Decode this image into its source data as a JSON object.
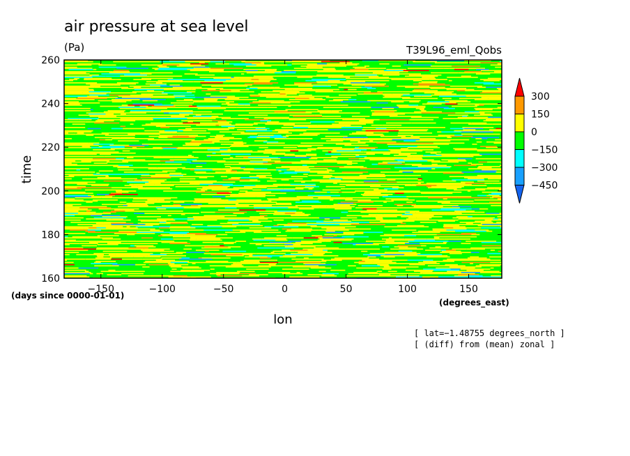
{
  "chart_data": {
    "type": "heatmap",
    "title": "air pressure at sea level",
    "units": "(Pa)",
    "dataset": "T39L96_eml_Qobs",
    "xlabel": "lon",
    "ylabel": "time",
    "x_units": "(degrees_east)",
    "y_units": "(days since 0000-01-01)",
    "xlim": [
      -180,
      177
    ],
    "ylim": [
      160,
      260
    ],
    "x_ticks": [
      -150,
      -100,
      -50,
      0,
      50,
      100,
      150
    ],
    "y_ticks": [
      160,
      180,
      200,
      220,
      240,
      260
    ],
    "x_tick_labels": [
      "−150",
      "−100",
      "−50",
      "0",
      "50",
      "100",
      "150"
    ],
    "colorbar": {
      "levels": [
        -450,
        -300,
        -150,
        0,
        150,
        300
      ],
      "level_labels": [
        "−450",
        "−300",
        "−150",
        "0",
        "150",
        "300"
      ],
      "colors": [
        "#1464f0",
        "#18a0ff",
        "#00ffff",
        "#00ff00",
        "#ffff00",
        "#ff9900",
        "#ff0000"
      ],
      "extend": "both"
    },
    "notes": [
      "[ lat=−1.48755 degrees_north ]",
      "[ (diff) from (mean) zonal ]"
    ]
  }
}
